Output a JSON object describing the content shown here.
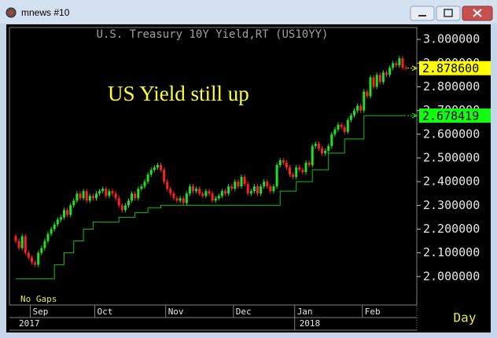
{
  "window": {
    "title": "mnews #10"
  },
  "chart_data": {
    "type": "candlestick",
    "title": "U.S. Treasury 10Y Yield,RT (US10YY)",
    "annotation": "US Yield still up",
    "note": "No Gaps",
    "period": "Day",
    "categories": [
      null,
      null,
      null,
      null,
      null,
      "Sep",
      null,
      null,
      null,
      null,
      null,
      null,
      null,
      null,
      null,
      null,
      null,
      null,
      null,
      null,
      null,
      null,
      null,
      null,
      null,
      "Oct",
      null,
      null,
      null,
      null,
      null,
      null,
      null,
      null,
      null,
      null,
      null,
      null,
      null,
      null,
      null,
      null,
      null,
      null,
      null,
      null,
      null,
      "Nov",
      null,
      null,
      null,
      null,
      null,
      null,
      null,
      null,
      null,
      null,
      null,
      null,
      null,
      null,
      null,
      null,
      null,
      null,
      null,
      null,
      "Dec",
      null,
      null,
      null,
      null,
      null,
      null,
      null,
      null,
      null,
      null,
      null,
      null,
      null,
      null,
      null,
      null,
      null,
      null,
      "Jan",
      null,
      null,
      null,
      null,
      null,
      null,
      null,
      null,
      null,
      null,
      null,
      null,
      null,
      null,
      null,
      null,
      null,
      null,
      null,
      null,
      "Feb",
      null,
      null,
      null,
      null,
      null,
      null,
      null,
      null,
      null,
      null,
      null,
      null,
      null
    ],
    "years": [
      "2017",
      null,
      null,
      null,
      null,
      null,
      null,
      null,
      null,
      null,
      null,
      null,
      null,
      null,
      null,
      null,
      null,
      null,
      null,
      null,
      null,
      null,
      null,
      null,
      null,
      null,
      null,
      null,
      null,
      null,
      null,
      null,
      null,
      null,
      null,
      null,
      null,
      null,
      null,
      null,
      null,
      null,
      null,
      null,
      null,
      null,
      null,
      null,
      null,
      null,
      null,
      null,
      null,
      null,
      null,
      null,
      null,
      null,
      null,
      null,
      null,
      null,
      null,
      null,
      null,
      null,
      null,
      null,
      null,
      null,
      null,
      null,
      null,
      null,
      null,
      null,
      null,
      null,
      null,
      null,
      null,
      null,
      null,
      null,
      null,
      null,
      null,
      "2018",
      null,
      null,
      null,
      null,
      null,
      null,
      null,
      null,
      null,
      null,
      null,
      null,
      null,
      null,
      null,
      null,
      null,
      null,
      null,
      null,
      null,
      null,
      null,
      null,
      null,
      null,
      null,
      null,
      null,
      null,
      null,
      null,
      null,
      null
    ],
    "open": [
      2.17,
      2.15,
      2.12,
      2.17,
      2.1,
      2.08,
      2.06,
      2.05,
      2.1,
      2.12,
      2.15,
      2.18,
      2.2,
      2.22,
      2.24,
      2.25,
      2.28,
      2.26,
      2.3,
      2.32,
      2.35,
      2.33,
      2.36,
      2.32,
      2.34,
      2.33,
      2.35,
      2.36,
      2.37,
      2.34,
      2.36,
      2.35,
      2.33,
      2.3,
      2.28,
      2.3,
      2.32,
      2.35,
      2.33,
      2.37,
      2.38,
      2.4,
      2.43,
      2.45,
      2.46,
      2.47,
      2.45,
      2.4,
      2.37,
      2.35,
      2.33,
      2.32,
      2.33,
      2.31,
      2.35,
      2.38,
      2.36,
      2.37,
      2.35,
      2.34,
      2.36,
      2.35,
      2.32,
      2.33,
      2.34,
      2.36,
      2.35,
      2.38,
      2.37,
      2.4,
      2.38,
      2.42,
      2.39,
      2.35,
      2.36,
      2.38,
      2.35,
      2.38,
      2.4,
      2.38,
      2.36,
      2.38,
      2.47,
      2.49,
      2.48,
      2.46,
      2.43,
      2.42,
      2.46,
      2.45,
      2.44,
      2.48,
      2.47,
      2.55,
      2.56,
      2.54,
      2.52,
      2.53,
      2.55,
      2.6,
      2.62,
      2.64,
      2.63,
      2.61,
      2.66,
      2.68,
      2.7,
      2.72,
      2.7,
      2.78,
      2.76,
      2.84,
      2.8,
      2.85,
      2.82,
      2.86,
      2.85,
      2.88,
      2.9,
      2.89,
      2.92,
      2.88
    ],
    "high": [
      2.18,
      2.16,
      2.18,
      2.18,
      2.11,
      2.09,
      2.07,
      2.11,
      2.13,
      2.16,
      2.19,
      2.21,
      2.23,
      2.25,
      2.26,
      2.29,
      2.29,
      2.31,
      2.33,
      2.36,
      2.36,
      2.37,
      2.37,
      2.35,
      2.35,
      2.36,
      2.37,
      2.38,
      2.38,
      2.37,
      2.37,
      2.36,
      2.34,
      2.31,
      2.31,
      2.33,
      2.36,
      2.36,
      2.38,
      2.39,
      2.41,
      2.44,
      2.46,
      2.47,
      2.48,
      2.48,
      2.46,
      2.41,
      2.38,
      2.36,
      2.34,
      2.34,
      2.34,
      2.36,
      2.39,
      2.39,
      2.38,
      2.38,
      2.36,
      2.37,
      2.37,
      2.36,
      2.34,
      2.35,
      2.37,
      2.37,
      2.39,
      2.39,
      2.41,
      2.41,
      2.43,
      2.43,
      2.4,
      2.37,
      2.39,
      2.39,
      2.39,
      2.41,
      2.41,
      2.39,
      2.39,
      2.48,
      2.5,
      2.5,
      2.49,
      2.47,
      2.44,
      2.47,
      2.47,
      2.46,
      2.49,
      2.49,
      2.56,
      2.57,
      2.57,
      2.55,
      2.54,
      2.56,
      2.61,
      2.63,
      2.65,
      2.65,
      2.64,
      2.67,
      2.69,
      2.71,
      2.73,
      2.73,
      2.79,
      2.79,
      2.85,
      2.85,
      2.86,
      2.86,
      2.87,
      2.87,
      2.89,
      2.91,
      2.91,
      2.93,
      2.93,
      2.89
    ],
    "low": [
      2.14,
      2.11,
      2.11,
      2.09,
      2.07,
      2.05,
      2.04,
      2.04,
      2.09,
      2.11,
      2.14,
      2.17,
      2.19,
      2.21,
      2.23,
      2.24,
      2.25,
      2.25,
      2.29,
      2.31,
      2.32,
      2.32,
      2.31,
      2.31,
      2.32,
      2.32,
      2.34,
      2.35,
      2.33,
      2.33,
      2.34,
      2.32,
      2.29,
      2.27,
      2.27,
      2.29,
      2.31,
      2.32,
      2.32,
      2.36,
      2.37,
      2.39,
      2.42,
      2.44,
      2.45,
      2.44,
      2.39,
      2.36,
      2.34,
      2.32,
      2.31,
      2.31,
      2.3,
      2.3,
      2.34,
      2.35,
      2.35,
      2.34,
      2.33,
      2.33,
      2.34,
      2.31,
      2.31,
      2.32,
      2.33,
      2.34,
      2.34,
      2.36,
      2.36,
      2.37,
      2.37,
      2.38,
      2.34,
      2.34,
      2.35,
      2.34,
      2.34,
      2.37,
      2.37,
      2.35,
      2.35,
      2.37,
      2.46,
      2.47,
      2.45,
      2.42,
      2.41,
      2.41,
      2.44,
      2.43,
      2.43,
      2.46,
      2.46,
      2.54,
      2.53,
      2.51,
      2.51,
      2.52,
      2.54,
      2.59,
      2.61,
      2.62,
      2.6,
      2.6,
      2.65,
      2.67,
      2.69,
      2.69,
      2.69,
      2.75,
      2.75,
      2.79,
      2.79,
      2.81,
      2.81,
      2.84,
      2.84,
      2.87,
      2.88,
      2.88,
      2.87,
      2.87
    ],
    "close": [
      2.15,
      2.12,
      2.17,
      2.1,
      2.08,
      2.06,
      2.05,
      2.1,
      2.12,
      2.15,
      2.18,
      2.2,
      2.22,
      2.24,
      2.25,
      2.28,
      2.26,
      2.3,
      2.32,
      2.35,
      2.33,
      2.36,
      2.32,
      2.34,
      2.33,
      2.35,
      2.36,
      2.37,
      2.34,
      2.36,
      2.35,
      2.33,
      2.3,
      2.28,
      2.3,
      2.32,
      2.35,
      2.33,
      2.37,
      2.38,
      2.4,
      2.43,
      2.45,
      2.46,
      2.47,
      2.45,
      2.4,
      2.37,
      2.35,
      2.33,
      2.32,
      2.33,
      2.31,
      2.35,
      2.38,
      2.36,
      2.37,
      2.35,
      2.34,
      2.36,
      2.35,
      2.32,
      2.33,
      2.34,
      2.36,
      2.35,
      2.38,
      2.37,
      2.4,
      2.38,
      2.42,
      2.39,
      2.35,
      2.36,
      2.38,
      2.35,
      2.38,
      2.4,
      2.38,
      2.36,
      2.38,
      2.47,
      2.49,
      2.48,
      2.46,
      2.43,
      2.42,
      2.46,
      2.45,
      2.44,
      2.48,
      2.47,
      2.55,
      2.56,
      2.54,
      2.52,
      2.53,
      2.55,
      2.6,
      2.62,
      2.64,
      2.63,
      2.61,
      2.66,
      2.68,
      2.7,
      2.72,
      2.7,
      2.78,
      2.76,
      2.84,
      2.8,
      2.85,
      2.82,
      2.86,
      2.85,
      2.88,
      2.9,
      2.89,
      2.92,
      2.88,
      2.8786
    ],
    "up_color": "#20e020",
    "down_color": "#ff2020",
    "stop_line": {
      "color": "#10c010",
      "values": [
        1.99,
        1.99,
        1.99,
        1.99,
        1.99,
        1.99,
        1.99,
        1.99,
        1.99,
        1.99,
        1.99,
        1.99,
        2.05,
        2.05,
        2.05,
        2.1,
        2.1,
        2.1,
        2.15,
        2.15,
        2.15,
        2.2,
        2.2,
        2.2,
        2.23,
        2.23,
        2.23,
        2.23,
        2.23,
        2.23,
        2.23,
        2.23,
        2.25,
        2.25,
        2.25,
        2.25,
        2.25,
        2.27,
        2.27,
        2.27,
        2.27,
        2.29,
        2.29,
        2.29,
        2.29,
        2.3,
        2.3,
        2.3,
        2.3,
        2.3,
        2.3,
        2.3,
        2.3,
        2.3,
        2.3,
        2.3,
        2.3,
        2.3,
        2.3,
        2.3,
        2.3,
        2.3,
        2.3,
        2.3,
        2.3,
        2.3,
        2.3,
        2.3,
        2.3,
        2.3,
        2.3,
        2.3,
        2.3,
        2.3,
        2.3,
        2.3,
        2.3,
        2.3,
        2.3,
        2.3,
        2.3,
        2.3,
        2.36,
        2.36,
        2.36,
        2.36,
        2.36,
        2.4,
        2.4,
        2.4,
        2.4,
        2.4,
        2.45,
        2.45,
        2.45,
        2.45,
        2.45,
        2.52,
        2.52,
        2.52,
        2.52,
        2.52,
        2.58,
        2.58,
        2.58,
        2.58,
        2.58,
        2.58,
        2.678419,
        2.678419,
        2.678419,
        2.678419,
        2.678419,
        2.678419,
        2.678419,
        2.678419,
        2.678419,
        2.678419,
        2.678419,
        2.678419,
        2.678419,
        2.678419
      ]
    },
    "current": {
      "value": 2.8786,
      "label": "2.878600",
      "color": "#ffff00"
    },
    "stop_current": {
      "value": 2.678419,
      "label": "2.678419",
      "color": "#10ff10"
    },
    "ylim": [
      1.88,
      3.05
    ],
    "yticks": [
      {
        "value": 2.0,
        "label": "2.000000"
      },
      {
        "value": 2.1,
        "label": "2.100000"
      },
      {
        "value": 2.2,
        "label": "2.200000"
      },
      {
        "value": 2.3,
        "label": "2.300000"
      },
      {
        "value": 2.4,
        "label": "2.400000"
      },
      {
        "value": 2.5,
        "label": "2.500000"
      },
      {
        "value": 2.6,
        "label": "2.600000"
      },
      {
        "value": 2.7,
        "label": "2.700000"
      },
      {
        "value": 2.8,
        "label": "2.800000"
      },
      {
        "value": 2.9,
        "label": "2.900000"
      },
      {
        "value": 3.0,
        "label": "3.000000"
      }
    ]
  }
}
